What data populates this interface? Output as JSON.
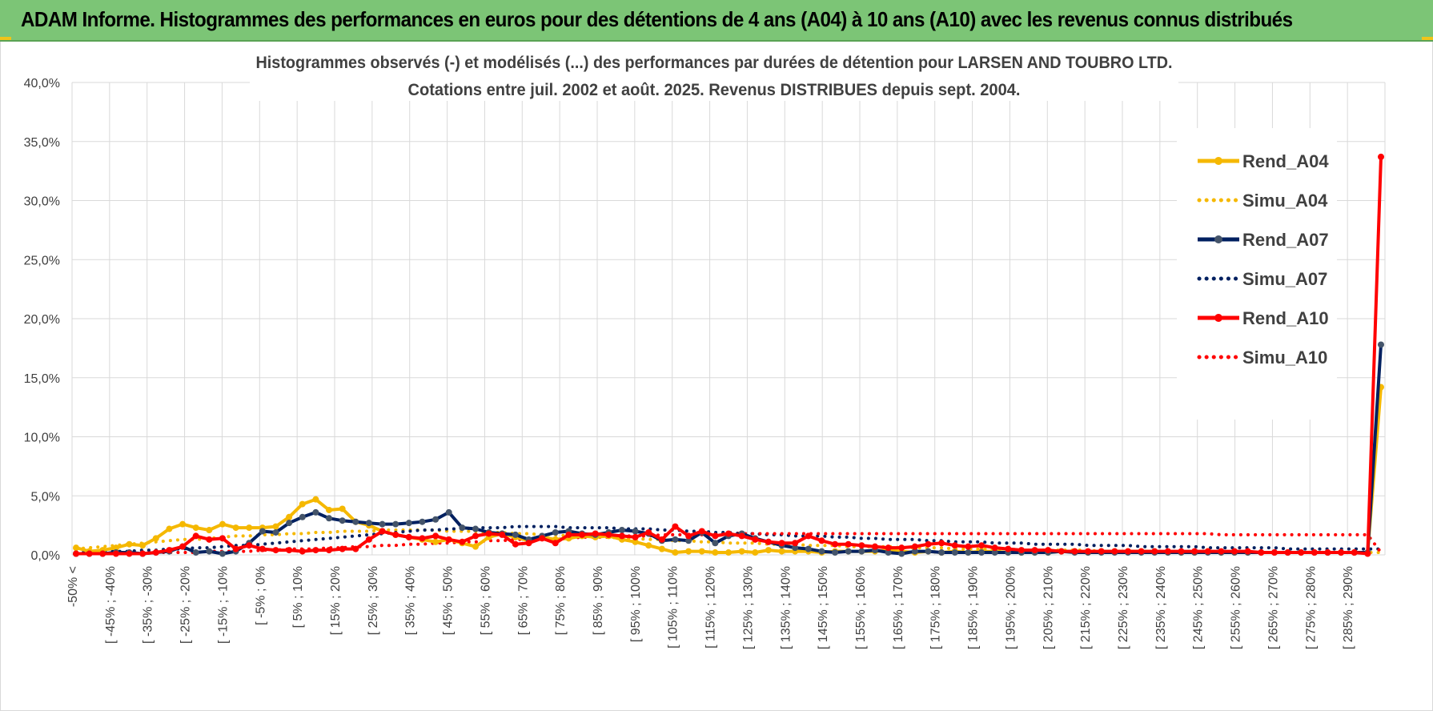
{
  "banner": {
    "title": "ADAM Informe. Histogrammes des performances en euros pour des détentions de 4 ans (A04) à 10 ans (A10) avec les revenus connus distribués"
  },
  "chart_data": {
    "type": "line",
    "title": "Histogrammes observés (-) et modélisés (...) des performances par durées de détention pour LARSEN AND TOUBRO LTD.",
    "subtitle": "Cotations entre juil. 2002 et août. 2025. Revenus DISTRIBUES depuis sept. 2004.",
    "xlabel": "",
    "ylabel": "",
    "ylim": [
      0,
      40
    ],
    "y_ticks": [
      "0,0%",
      "5,0%",
      "10,0%",
      "15,0%",
      "20,0%",
      "25,0%",
      "30,0%",
      "35,0%",
      "40,0%"
    ],
    "grid": true,
    "legend_position": "right",
    "x_tick_labels": [
      "-50% <",
      "[ -45% ; -40%",
      "[ -35% ; -30%",
      "[ -25% ; -20%",
      "[ -15% ; -10%",
      "[ -5% ; 0%",
      "[ 5% ; 10%",
      "[ 15% ; 20%",
      "[ 25% ; 30%",
      "[ 35% ; 40%",
      "[ 45% ; 50%",
      "[ 55% ; 60%",
      "[ 65% ; 70%",
      "[ 75% ; 80%",
      "[ 85% ; 90%",
      "[ 95% ; 100%",
      "[ 105% ; 110%",
      "[ 115% ; 120%",
      "[ 125% ; 130%",
      "[ 135% ; 140%",
      "[ 145% ; 150%",
      "[ 155% ; 160%",
      "[ 165% ; 170%",
      "[ 175% ; 180%",
      "[ 185% ; 190%",
      "[ 195% ; 200%",
      "[ 205% ; 210%",
      "[ 215% ; 220%",
      "[ 225% ; 230%",
      "[ 235% ; 240%",
      "[ 245% ; 250%",
      "[ 255% ; 260%",
      "[ 265% ; 270%",
      "[ 275% ; 280%",
      "[ 285% ; 290%"
    ],
    "series": [
      {
        "name": "Rend_A04",
        "color": "#f5b800",
        "style": "solid",
        "markers": true,
        "values": [
          0.6,
          0.3,
          0.4,
          0.6,
          0.9,
          0.8,
          1.4,
          2.2,
          2.6,
          2.3,
          2.1,
          2.6,
          2.3,
          2.3,
          2.3,
          2.4,
          3.2,
          4.3,
          4.7,
          3.8,
          3.9,
          2.8,
          2.5,
          2.0,
          1.7,
          1.5,
          1.3,
          1.1,
          1.3,
          1.0,
          0.7,
          1.5,
          1.8,
          1.5,
          1.2,
          1.5,
          1.3,
          1.4,
          1.6,
          1.5,
          1.6,
          1.3,
          1.1,
          0.8,
          0.5,
          0.2,
          0.3,
          0.3,
          0.2,
          0.2,
          0.3,
          0.2,
          0.4,
          0.3,
          0.3,
          0.3,
          0.2,
          0.3,
          0.3,
          0.3,
          0.3,
          0.4,
          0.3,
          0.2,
          0.3,
          0.2,
          0.3,
          0.2,
          0.3,
          0.3,
          0.2,
          0.2,
          0.2,
          0.2,
          0.3,
          0.3,
          0.2,
          0.3,
          0.3,
          0.3,
          0.3,
          0.3,
          0.2,
          0.2,
          0.2,
          0.3,
          0.2,
          0.2,
          0.2,
          0.2,
          0.2,
          0.2,
          0.2,
          0.2,
          0.2,
          0.2,
          0.2,
          0.2,
          14.2
        ]
      },
      {
        "name": "Simu_A04",
        "color": "#f5b800",
        "style": "dotted",
        "markers": false,
        "values": [
          0.5,
          0.6,
          0.7,
          0.8,
          0.9,
          1.0,
          1.1,
          1.2,
          1.3,
          1.3,
          1.4,
          1.5,
          1.6,
          1.6,
          1.7,
          1.7,
          1.8,
          1.8,
          1.9,
          1.9,
          2.0,
          2.0,
          2.0,
          2.1,
          2.1,
          2.1,
          2.1,
          2.1,
          2.0,
          2.0,
          2.0,
          1.9,
          1.9,
          1.8,
          1.8,
          1.7,
          1.7,
          1.6,
          1.6,
          1.5,
          1.5,
          1.4,
          1.4,
          1.3,
          1.3,
          1.2,
          1.2,
          1.1,
          1.1,
          1.0,
          1.0,
          1.0,
          0.9,
          0.9,
          0.9,
          0.8,
          0.8,
          0.8,
          0.7,
          0.7,
          0.7,
          0.7,
          0.6,
          0.6,
          0.6,
          0.6,
          0.5,
          0.5,
          0.5,
          0.5,
          0.5,
          0.4,
          0.4,
          0.4,
          0.4,
          0.4,
          0.4,
          0.3,
          0.3,
          0.3,
          0.3,
          0.3,
          0.3,
          0.3,
          0.3,
          0.3,
          0.2,
          0.2,
          0.2,
          0.2,
          0.2,
          0.2,
          0.2,
          0.2,
          0.2,
          0.2,
          0.2,
          0.2,
          0.2
        ]
      },
      {
        "name": "Rend_A07",
        "color": "#002060",
        "style": "solid",
        "markers": true,
        "values": [
          0.1,
          0.1,
          0.1,
          0.2,
          0.2,
          0.1,
          0.2,
          0.3,
          0.7,
          0.2,
          0.3,
          0.1,
          0.3,
          1.0,
          2.0,
          1.9,
          2.7,
          3.2,
          3.6,
          3.1,
          2.9,
          2.8,
          2.7,
          2.6,
          2.6,
          2.7,
          2.8,
          3.0,
          3.6,
          2.3,
          2.2,
          1.9,
          1.8,
          1.7,
          1.3,
          1.6,
          1.9,
          2.0,
          1.8,
          1.7,
          1.9,
          2.1,
          2.0,
          1.8,
          1.2,
          1.3,
          1.2,
          1.9,
          1.0,
          1.6,
          1.8,
          1.4,
          1.1,
          0.8,
          0.6,
          0.5,
          0.3,
          0.2,
          0.3,
          0.3,
          0.4,
          0.2,
          0.1,
          0.3,
          0.3,
          0.2,
          0.2,
          0.2,
          0.2,
          0.2,
          0.2,
          0.2,
          0.2,
          0.2,
          0.3,
          0.2,
          0.2,
          0.2,
          0.2,
          0.2,
          0.2,
          0.2,
          0.2,
          0.2,
          0.2,
          0.2,
          0.2,
          0.2,
          0.2,
          0.2,
          0.2,
          0.2,
          0.2,
          0.2,
          0.2,
          0.2,
          0.2,
          0.2,
          17.8
        ]
      },
      {
        "name": "Simu_A07",
        "color": "#002060",
        "style": "dotted",
        "markers": false,
        "values": [
          0.2,
          0.2,
          0.3,
          0.3,
          0.3,
          0.4,
          0.4,
          0.5,
          0.5,
          0.6,
          0.6,
          0.7,
          0.8,
          0.8,
          0.9,
          1.0,
          1.1,
          1.2,
          1.3,
          1.4,
          1.5,
          1.6,
          1.7,
          1.8,
          1.9,
          2.0,
          2.1,
          2.1,
          2.2,
          2.2,
          2.3,
          2.3,
          2.3,
          2.4,
          2.4,
          2.4,
          2.4,
          2.3,
          2.3,
          2.3,
          2.3,
          2.2,
          2.2,
          2.2,
          2.1,
          2.1,
          2.0,
          2.0,
          1.9,
          1.9,
          1.8,
          1.8,
          1.7,
          1.7,
          1.6,
          1.6,
          1.6,
          1.5,
          1.5,
          1.4,
          1.4,
          1.3,
          1.3,
          1.3,
          1.2,
          1.2,
          1.1,
          1.1,
          1.1,
          1.0,
          1.0,
          1.0,
          0.9,
          0.9,
          0.9,
          0.9,
          0.8,
          0.8,
          0.8,
          0.8,
          0.7,
          0.7,
          0.7,
          0.7,
          0.7,
          0.6,
          0.6,
          0.6,
          0.6,
          0.6,
          0.6,
          0.5,
          0.5,
          0.5,
          0.5,
          0.5,
          0.5,
          0.5,
          0.5
        ]
      },
      {
        "name": "Rend_A10",
        "color": "#ff0000",
        "style": "solid",
        "markers": true,
        "values": [
          0.1,
          0.1,
          0.1,
          0.1,
          0.1,
          0.1,
          0.2,
          0.4,
          0.7,
          1.6,
          1.3,
          1.4,
          0.5,
          0.8,
          0.5,
          0.4,
          0.4,
          0.3,
          0.4,
          0.4,
          0.5,
          0.5,
          1.3,
          2.0,
          1.7,
          1.5,
          1.4,
          1.6,
          1.3,
          1.1,
          1.6,
          1.8,
          1.7,
          0.9,
          1.0,
          1.4,
          1.0,
          1.7,
          1.7,
          1.8,
          1.7,
          1.6,
          1.5,
          1.9,
          1.3,
          2.4,
          1.6,
          2.0,
          1.6,
          1.8,
          1.6,
          1.3,
          1.1,
          1.0,
          1.0,
          1.6,
          1.2,
          0.9,
          0.9,
          0.8,
          0.7,
          0.6,
          0.6,
          0.7,
          0.9,
          1.0,
          0.8,
          0.7,
          0.8,
          0.6,
          0.5,
          0.4,
          0.4,
          0.4,
          0.3,
          0.3,
          0.3,
          0.3,
          0.3,
          0.3,
          0.3,
          0.3,
          0.3,
          0.3,
          0.3,
          0.3,
          0.3,
          0.3,
          0.3,
          0.2,
          0.2,
          0.2,
          0.2,
          0.2,
          0.2,
          0.2,
          0.2,
          0.1,
          33.7
        ]
      },
      {
        "name": "Simu_A10",
        "color": "#ff0000",
        "style": "dotted",
        "markers": false,
        "values": [
          0.1,
          0.1,
          0.1,
          0.1,
          0.1,
          0.1,
          0.2,
          0.2,
          0.2,
          0.2,
          0.3,
          0.3,
          0.3,
          0.3,
          0.4,
          0.4,
          0.5,
          0.5,
          0.5,
          0.6,
          0.6,
          0.7,
          0.7,
          0.8,
          0.8,
          0.9,
          0.9,
          1.0,
          1.0,
          1.1,
          1.1,
          1.2,
          1.2,
          1.3,
          1.3,
          1.3,
          1.4,
          1.4,
          1.5,
          1.5,
          1.5,
          1.6,
          1.6,
          1.6,
          1.7,
          1.7,
          1.7,
          1.7,
          1.7,
          1.8,
          1.8,
          1.8,
          1.8,
          1.8,
          1.8,
          1.8,
          1.8,
          1.8,
          1.8,
          1.8,
          1.8,
          1.8,
          1.8,
          1.8,
          1.8,
          1.8,
          1.8,
          1.8,
          1.8,
          1.8,
          1.8,
          1.8,
          1.8,
          1.8,
          1.8,
          1.8,
          1.8,
          1.8,
          1.8,
          1.8,
          1.8,
          1.8,
          1.8,
          1.8,
          1.8,
          1.8,
          1.7,
          1.7,
          1.7,
          1.7,
          1.7,
          1.7,
          1.7,
          1.7,
          1.7,
          1.7,
          1.7,
          1.7,
          0.2
        ]
      }
    ]
  }
}
